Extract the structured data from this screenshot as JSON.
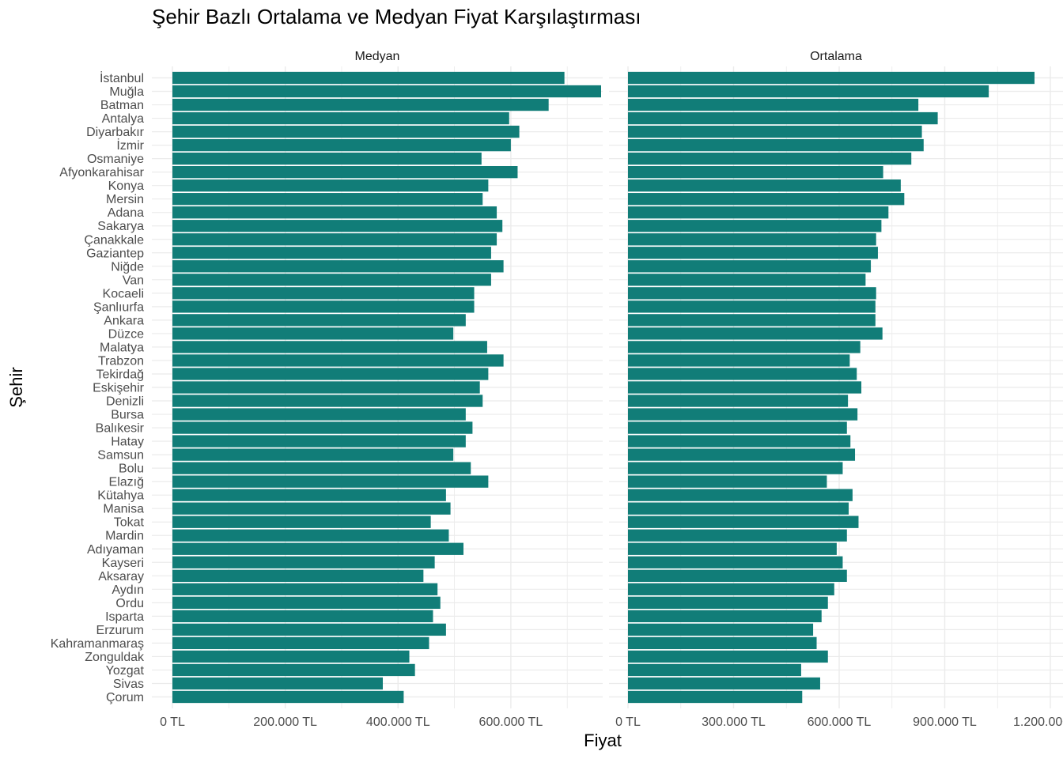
{
  "chart_data": {
    "type": "bar",
    "orientation": "horizontal",
    "title": "Şehir Bazlı Ortalama ve Medyan Fiyat Karşılaştırması",
    "xlabel": "Fiyat",
    "ylabel": "Şehir",
    "bar_color": "#117D78",
    "grid_color": "#EBEBEB",
    "categories": [
      "İstanbul",
      "Muğla",
      "Batman",
      "Antalya",
      "Diyarbakır",
      "İzmir",
      "Osmaniye",
      "Afyonkarahisar",
      "Konya",
      "Mersin",
      "Adana",
      "Sakarya",
      "Çanakkale",
      "Gaziantep",
      "Niğde",
      "Van",
      "Kocaeli",
      "Şanlıurfa",
      "Ankara",
      "Düzce",
      "Malatya",
      "Trabzon",
      "Tekirdağ",
      "Eskişehir",
      "Denizli",
      "Bursa",
      "Balıkesir",
      "Hatay",
      "Samsun",
      "Bolu",
      "Elazığ",
      "Kütahya",
      "Manisa",
      "Tokat",
      "Mardin",
      "Adıyaman",
      "Kayseri",
      "Aksaray",
      "Aydın",
      "Ordu",
      "Isparta",
      "Erzurum",
      "Kahramanmaraş",
      "Zonguldak",
      "Yozgat",
      "Sivas",
      "Çorum"
    ],
    "panels": [
      {
        "name": "Medyan",
        "xlim": [
          0,
          760000
        ],
        "ticks": [
          0,
          200000,
          400000,
          600000
        ],
        "tick_labels": [
          "0 TL",
          "200.000 TL",
          "400.000 TL",
          "600.000 TL"
        ],
        "values": [
          695000,
          760000,
          667000,
          597000,
          615000,
          600000,
          548000,
          612000,
          560000,
          550000,
          575000,
          585000,
          575000,
          565000,
          587000,
          565000,
          535000,
          535000,
          520000,
          498000,
          558000,
          587000,
          560000,
          545000,
          550000,
          520000,
          532000,
          520000,
          498000,
          529000,
          560000,
          485000,
          493000,
          458000,
          490000,
          516000,
          465000,
          445000,
          470000,
          475000,
          462000,
          485000,
          455000,
          420000,
          430000,
          373000,
          410000
        ]
      },
      {
        "name": "Ortalama",
        "xlim": [
          0,
          1200000
        ],
        "ticks": [
          0,
          300000,
          600000,
          900000,
          1200000
        ],
        "tick_labels": [
          "0 TL",
          "300.000 TL",
          "600.000 TL",
          "900.000 TL",
          "1.200.000 TL"
        ],
        "values": [
          1155000,
          1025000,
          825000,
          880000,
          835000,
          840000,
          805000,
          725000,
          775000,
          785000,
          740000,
          720000,
          705000,
          710000,
          690000,
          675000,
          705000,
          703000,
          703000,
          723000,
          660000,
          630000,
          650000,
          663000,
          625000,
          652000,
          622000,
          632000,
          645000,
          610000,
          565000,
          638000,
          627000,
          655000,
          622000,
          593000,
          610000,
          622000,
          586000,
          568000,
          550000,
          526000,
          536000,
          568000,
          492000,
          546000,
          495000
        ]
      }
    ]
  }
}
